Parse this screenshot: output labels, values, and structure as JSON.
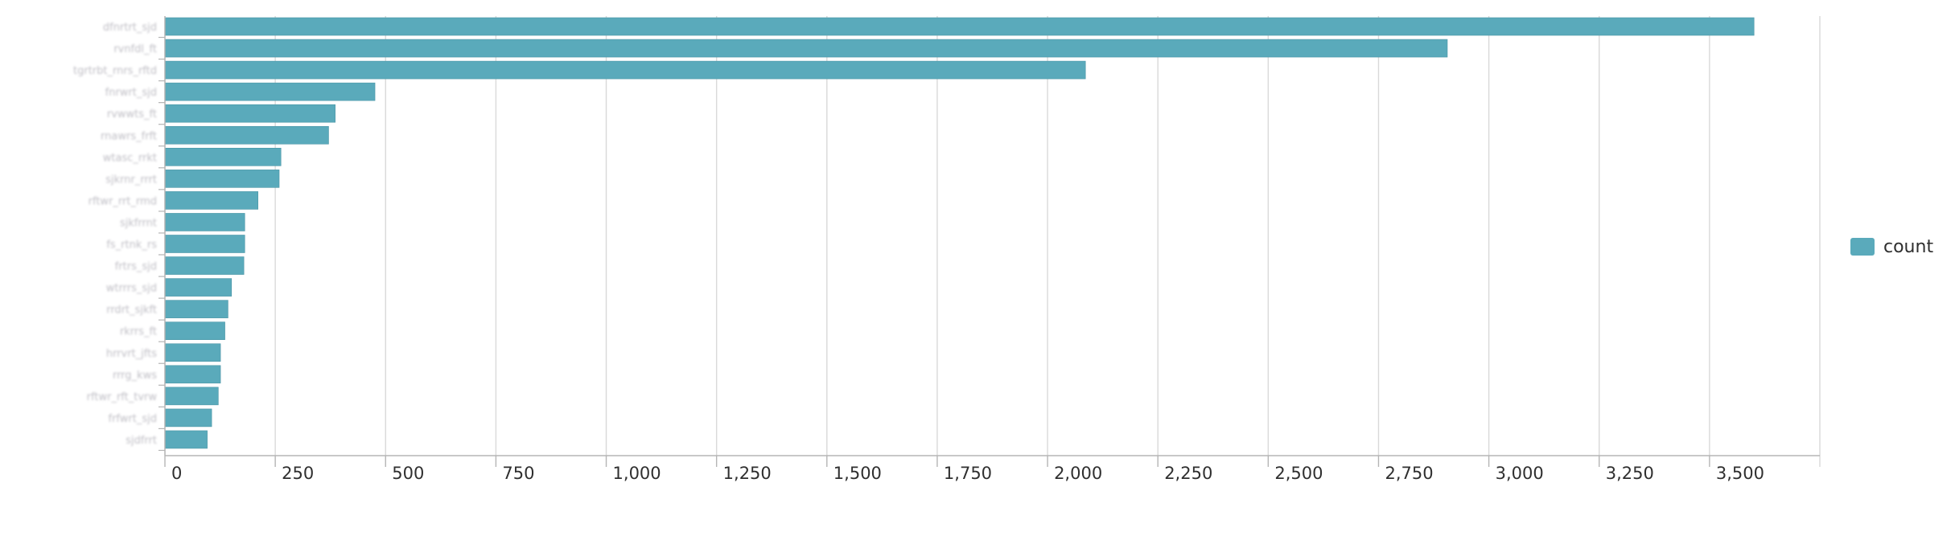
{
  "chart_data": {
    "type": "bar",
    "orientation": "horizontal",
    "categories": [
      "dfnrtrt_sjd",
      "rvnfdl_ft",
      "tgrtrbt_rnrs_rftd",
      "fnrwrt_sjd",
      "rvwwts_ft",
      "rnawrs_frft",
      "wtasc_rrkt",
      "sjkrnr_rrrt",
      "rftwr_rrt_rmd",
      "sjkfrrnt",
      "fs_rtnk_rs",
      "frtrs_sjd",
      "wtrrrs_sjd",
      "rrdrt_sjkft",
      "rkrrs_ft",
      "hrrvrt_jfts",
      "rrrg_kws",
      "rftwr_rft_tvrw",
      "frfwrt_sjd",
      "sjdfrrt"
    ],
    "series": [
      {
        "name": "count",
        "color": "#5aaabb",
        "values": [
          3600,
          2905,
          2085,
          475,
          385,
          370,
          262,
          258,
          210,
          180,
          180,
          178,
          150,
          142,
          135,
          125,
          125,
          120,
          105,
          95
        ]
      }
    ],
    "x_ticks": [
      "0",
      "250",
      "500",
      "750",
      "1,000",
      "1,250",
      "1,500",
      "1,750",
      "2,000",
      "2,250",
      "2,500",
      "2,750",
      "3,000",
      "3,250",
      "3,500"
    ],
    "xlim": [
      0,
      3750
    ],
    "grid": true,
    "legend_position": "right"
  }
}
